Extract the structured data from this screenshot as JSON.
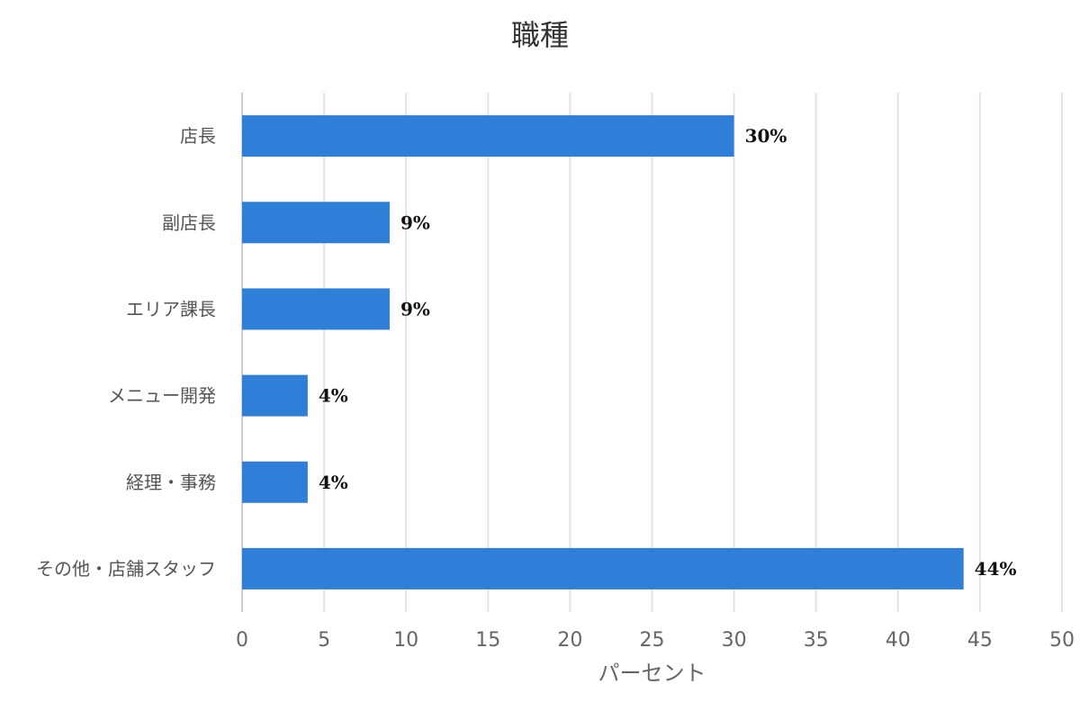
{
  "chart_data": {
    "type": "bar",
    "orientation": "horizontal",
    "title": "職種",
    "xlabel": "パーセント",
    "ylabel": "",
    "xlim": [
      0,
      50
    ],
    "x_ticks": [
      0,
      5,
      10,
      15,
      20,
      25,
      30,
      35,
      40,
      45,
      50
    ],
    "categories": [
      "店長",
      "副店長",
      "エリア課長",
      "メニュー開発",
      "経理・事務",
      "その他・店舗スタッフ"
    ],
    "values": [
      30,
      9,
      9,
      4,
      4,
      44
    ],
    "data_labels": [
      "30%",
      "9%",
      "9%",
      "4%",
      "4%",
      "44%"
    ],
    "bar_color": "#2f7fd8",
    "grid": true,
    "legend": "none"
  }
}
